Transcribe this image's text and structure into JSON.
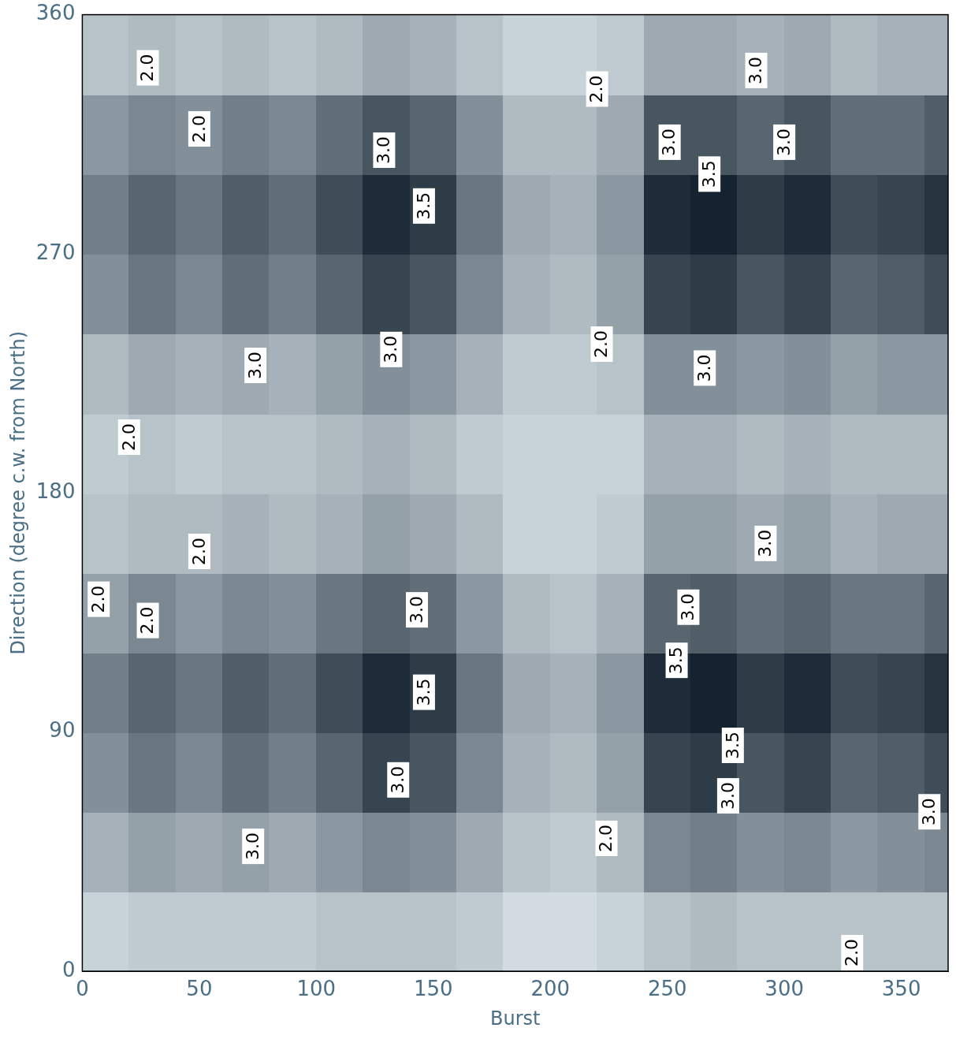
{
  "chart_data": {
    "type": "heatmap",
    "x_label": "Burst",
    "y_label": "Direction (degree c.w. from North)",
    "xlim": [
      0,
      370
    ],
    "ylim": [
      0,
      360
    ],
    "xticks": [
      0,
      50,
      100,
      150,
      200,
      250,
      300,
      350
    ],
    "yticks": [
      0,
      90,
      180,
      270,
      360
    ],
    "grid": false,
    "x_edges": [
      0,
      20,
      40,
      60,
      80,
      100,
      120,
      140,
      160,
      180,
      200,
      220,
      240,
      260,
      280,
      300,
      320,
      340,
      360,
      380
    ],
    "y_edges": [
      0,
      30,
      60,
      90,
      120,
      150,
      180,
      210,
      240,
      270,
      300,
      330,
      360
    ],
    "color_range": [
      1.5,
      4.0
    ],
    "cells": [
      [
        1.8,
        1.9,
        1.9,
        1.9,
        1.9,
        2.0,
        2.0,
        2.0,
        1.9,
        1.7,
        1.7,
        1.8,
        2.0,
        2.1,
        2.0,
        2.0,
        2.0,
        2.0,
        2.0
      ],
      [
        2.2,
        2.4,
        2.3,
        2.4,
        2.3,
        2.5,
        2.7,
        2.6,
        2.3,
        2.0,
        1.9,
        2.1,
        2.7,
        2.8,
        2.6,
        2.7,
        2.5,
        2.6,
        2.7
      ],
      [
        2.6,
        2.9,
        2.7,
        3.0,
        2.8,
        3.1,
        3.5,
        3.3,
        2.7,
        2.2,
        2.1,
        2.4,
        3.5,
        3.6,
        3.3,
        3.5,
        3.1,
        3.2,
        3.4
      ],
      [
        2.8,
        3.1,
        2.9,
        3.2,
        3.0,
        3.4,
        3.8,
        3.6,
        2.9,
        2.3,
        2.2,
        2.5,
        3.8,
        3.9,
        3.6,
        3.8,
        3.4,
        3.5,
        3.7
      ],
      [
        2.4,
        2.7,
        2.5,
        2.7,
        2.6,
        2.9,
        3.1,
        3.0,
        2.5,
        2.1,
        2.0,
        2.2,
        3.1,
        3.2,
        3.0,
        3.1,
        2.9,
        2.9,
        3.1
      ],
      [
        2.0,
        2.1,
        2.1,
        2.2,
        2.1,
        2.2,
        2.4,
        2.3,
        2.1,
        1.8,
        1.8,
        1.9,
        2.4,
        2.4,
        2.3,
        2.4,
        2.2,
        2.3,
        2.3
      ],
      [
        1.9,
        2.0,
        1.9,
        2.0,
        2.0,
        2.1,
        2.2,
        2.1,
        1.9,
        1.8,
        1.8,
        1.8,
        2.2,
        2.2,
        2.1,
        2.2,
        2.1,
        2.1,
        2.1
      ],
      [
        2.1,
        2.3,
        2.2,
        2.3,
        2.2,
        2.4,
        2.6,
        2.5,
        2.2,
        1.9,
        1.9,
        2.0,
        2.6,
        2.6,
        2.5,
        2.6,
        2.4,
        2.5,
        2.5
      ],
      [
        2.6,
        2.9,
        2.7,
        3.0,
        2.8,
        3.1,
        3.5,
        3.3,
        2.7,
        2.2,
        2.1,
        2.4,
        3.5,
        3.6,
        3.3,
        3.5,
        3.1,
        3.2,
        3.4
      ],
      [
        2.8,
        3.1,
        2.9,
        3.2,
        3.0,
        3.4,
        3.8,
        3.6,
        2.9,
        2.3,
        2.2,
        2.5,
        3.8,
        3.9,
        3.6,
        3.8,
        3.4,
        3.5,
        3.7
      ],
      [
        2.5,
        2.7,
        2.6,
        2.8,
        2.7,
        3.0,
        3.3,
        3.1,
        2.6,
        2.1,
        2.1,
        2.3,
        3.3,
        3.3,
        3.1,
        3.3,
        3.0,
        3.0,
        3.2
      ],
      [
        2.0,
        2.1,
        2.0,
        2.1,
        2.0,
        2.1,
        2.3,
        2.2,
        2.0,
        1.8,
        1.8,
        1.9,
        2.3,
        2.3,
        2.2,
        2.3,
        2.1,
        2.2,
        2.2
      ]
    ],
    "annotations": [
      {
        "x": 28,
        "y": 340,
        "text": "2.0"
      },
      {
        "x": 50,
        "y": 317,
        "text": "2.0"
      },
      {
        "x": 129,
        "y": 309,
        "text": "3.0"
      },
      {
        "x": 146,
        "y": 288,
        "text": "3.5"
      },
      {
        "x": 220,
        "y": 332,
        "text": "2.0"
      },
      {
        "x": 251,
        "y": 312,
        "text": "3.0"
      },
      {
        "x": 268,
        "y": 300,
        "text": "3.5"
      },
      {
        "x": 288,
        "y": 339,
        "text": "3.0"
      },
      {
        "x": 300,
        "y": 312,
        "text": "3.0"
      },
      {
        "x": 74,
        "y": 228,
        "text": "3.0"
      },
      {
        "x": 132,
        "y": 234,
        "text": "3.0"
      },
      {
        "x": 222,
        "y": 236,
        "text": "2.0"
      },
      {
        "x": 266,
        "y": 227,
        "text": "3.0"
      },
      {
        "x": 20,
        "y": 201,
        "text": "2.0"
      },
      {
        "x": 50,
        "y": 158,
        "text": "2.0"
      },
      {
        "x": 292,
        "y": 161,
        "text": "3.0"
      },
      {
        "x": 7,
        "y": 140,
        "text": "2.0"
      },
      {
        "x": 28,
        "y": 132,
        "text": "2.0"
      },
      {
        "x": 143,
        "y": 136,
        "text": "3.0"
      },
      {
        "x": 259,
        "y": 137,
        "text": "3.0"
      },
      {
        "x": 146,
        "y": 105,
        "text": "3.5"
      },
      {
        "x": 254,
        "y": 117,
        "text": "3.5"
      },
      {
        "x": 278,
        "y": 85,
        "text": "3.5"
      },
      {
        "x": 135,
        "y": 72,
        "text": "3.0"
      },
      {
        "x": 276,
        "y": 66,
        "text": "3.0"
      },
      {
        "x": 73,
        "y": 47,
        "text": "3.0"
      },
      {
        "x": 224,
        "y": 50,
        "text": "2.0"
      },
      {
        "x": 362,
        "y": 60,
        "text": "3.0"
      },
      {
        "x": 329,
        "y": 7,
        "text": "2.0"
      }
    ]
  }
}
